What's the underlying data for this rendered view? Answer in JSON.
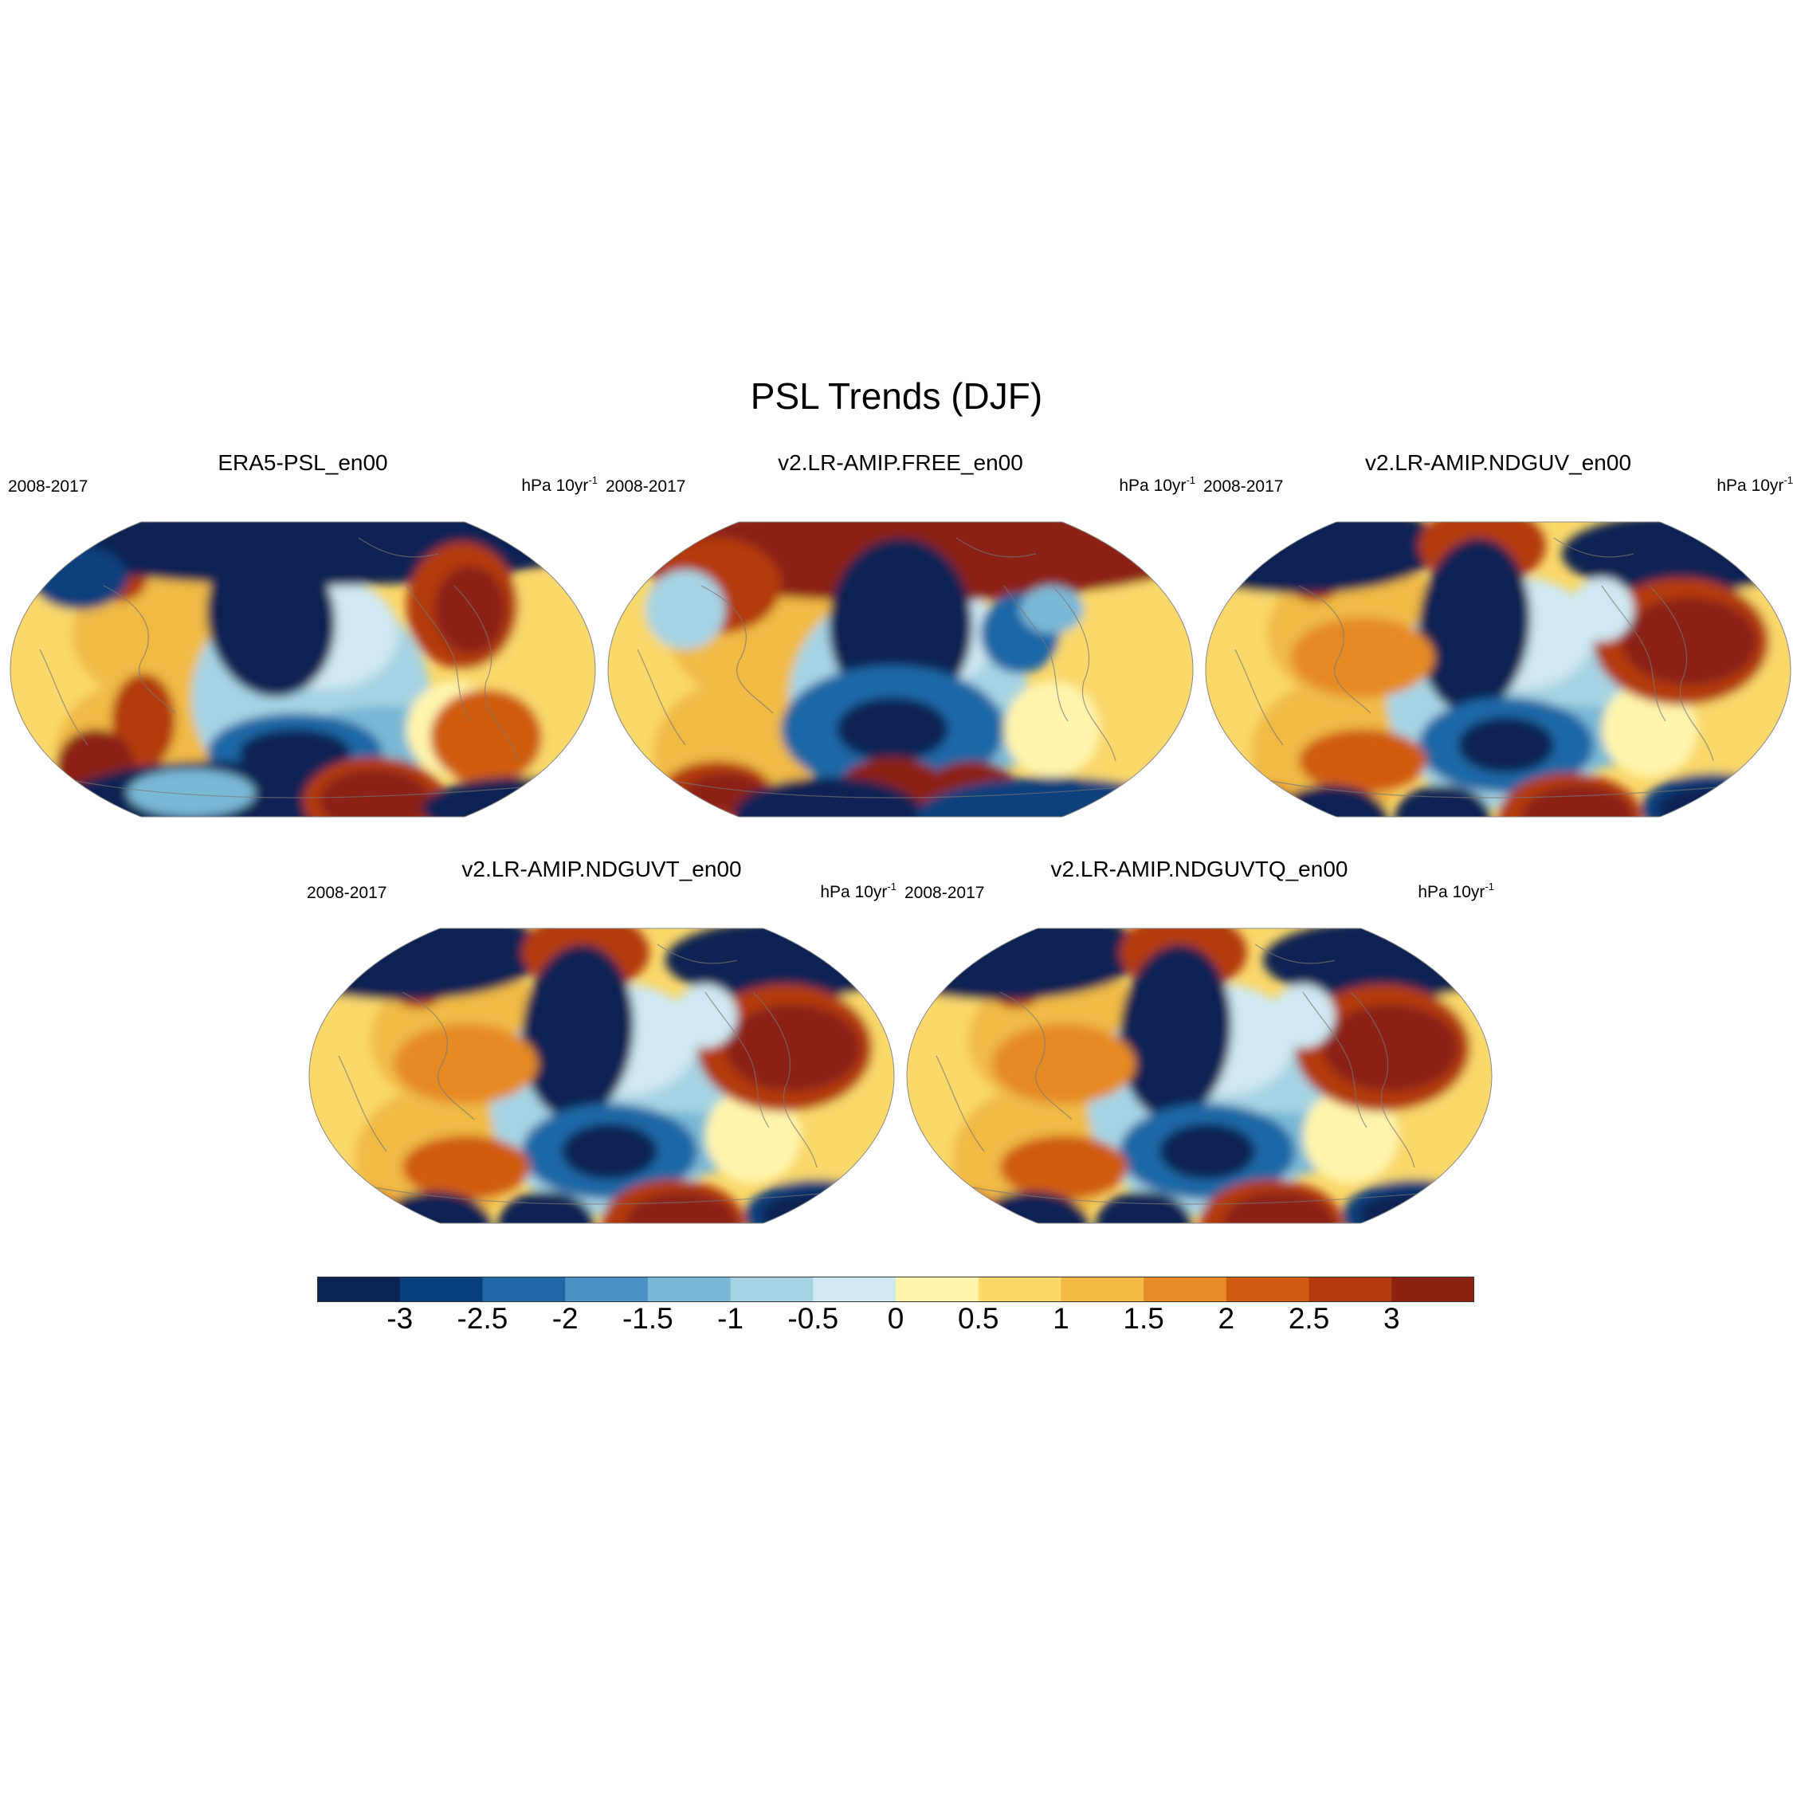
{
  "title": "PSL Trends (DJF)",
  "panels": [
    {
      "title": "ERA5-PSL_en00",
      "left_label": "2008-2017",
      "units_base": "hPa 10yr",
      "units_sup": "-1",
      "variant": "era5"
    },
    {
      "title": "v2.LR-AMIP.FREE_en00",
      "left_label": "2008-2017",
      "units_base": "hPa 10yr",
      "units_sup": "-1",
      "variant": "free"
    },
    {
      "title": "v2.LR-AMIP.NDGUV_en00",
      "left_label": "2008-2017",
      "units_base": "hPa 10yr",
      "units_sup": "-1",
      "variant": "nudged"
    },
    {
      "title": "v2.LR-AMIP.NDGUVT_en00",
      "left_label": "2008-2017",
      "units_base": "hPa 10yr",
      "units_sup": "-1",
      "variant": "nudged"
    },
    {
      "title": "v2.LR-AMIP.NDGUVTQ_en00",
      "left_label": "2008-2017",
      "units_base": "hPa 10yr",
      "units_sup": "-1",
      "variant": "nudged"
    }
  ],
  "colorbar": {
    "levels": [
      "-3",
      "-2.5",
      "-2",
      "-1.5",
      "-1",
      "-0.5",
      "0",
      "0.5",
      "1",
      "1.5",
      "2",
      "2.5",
      "3"
    ],
    "colors": [
      "#0b2352",
      "#0a3f7d",
      "#1f67a6",
      "#4a93c4",
      "#7ab8d6",
      "#a6d3e3",
      "#cfe8f2",
      "#fff4ac",
      "#fad86a",
      "#f0ba45",
      "#e58a24",
      "#cf5b10",
      "#b33a0c",
      "#8c2212"
    ]
  },
  "chart_data": {
    "type": "heatmap",
    "title": "PSL Trends (DJF)",
    "units": "hPa 10yr-1",
    "period": "2008-2017",
    "panels": [
      "ERA5-PSL_en00",
      "v2.LR-AMIP.FREE_en00",
      "v2.LR-AMIP.NDGUV_en00",
      "v2.LR-AMIP.NDGUVT_en00",
      "v2.LR-AMIP.NDGUVTQ_en00"
    ],
    "contour_levels": [
      -3,
      -2.5,
      -2,
      -1.5,
      -1,
      -0.5,
      0,
      0.5,
      1,
      1.5,
      2,
      2.5,
      3
    ]
  }
}
